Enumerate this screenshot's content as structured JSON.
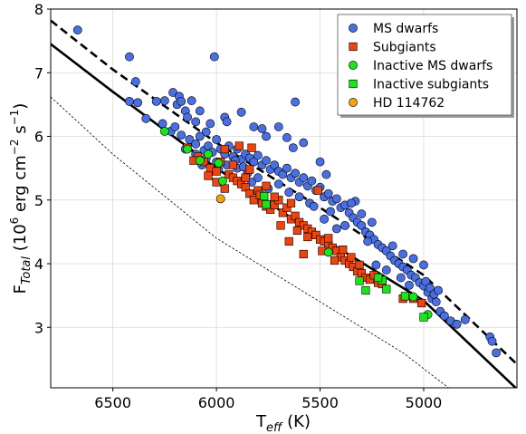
{
  "chart_data": {
    "type": "scatter",
    "xlabel_main": "T",
    "xlabel_sub": "eff",
    "xlabel_unit": " (K)",
    "ylabel_main": "F",
    "ylabel_sub": "Total",
    "ylabel_unit_a": " (10",
    "ylabel_unit_b": " erg cm",
    "ylabel_unit_c": " s",
    "ylabel_unit_d": ")",
    "ylabel_sup_a": "6",
    "ylabel_sup_b": "−2",
    "ylabel_sup_c": "−1",
    "xlim": [
      6800,
      4550
    ],
    "ylim": [
      2.05,
      8.0
    ],
    "x_ticks": [
      6500,
      6000,
      5500,
      5000
    ],
    "y_ticks": [
      3,
      4,
      5,
      6,
      7,
      8
    ],
    "grid": true,
    "legend_position": "top-right",
    "legend": [
      {
        "label": "MS dwarfs",
        "marker": "circle",
        "color": "#4a6fe3"
      },
      {
        "label": "Subgiants",
        "marker": "square",
        "color": "#f0440f"
      },
      {
        "label": "Inactive MS dwarfs",
        "marker": "circle",
        "color": "#19e619"
      },
      {
        "label": "Inactive subgiants",
        "marker": "square",
        "color": "#19e619"
      },
      {
        "label": "HD 114762",
        "marker": "circle",
        "color": "#f5a30a"
      }
    ],
    "reference_curves": [
      {
        "style": "dashed",
        "points": [
          [
            6800,
            7.82
          ],
          [
            6500,
            7.05
          ],
          [
            6000,
            5.9
          ],
          [
            5500,
            4.88
          ],
          [
            5000,
            3.82
          ],
          [
            4550,
            2.42
          ]
        ]
      },
      {
        "style": "solid",
        "points": [
          [
            6800,
            7.45
          ],
          [
            6500,
            6.7
          ],
          [
            6000,
            5.5
          ],
          [
            5500,
            4.42
          ],
          [
            5000,
            3.42
          ],
          [
            4550,
            2.03
          ]
        ]
      },
      {
        "style": "dotted",
        "points": [
          [
            6800,
            6.62
          ],
          [
            6500,
            5.72
          ],
          [
            6000,
            4.4
          ],
          [
            5500,
            3.4
          ],
          [
            5100,
            2.6
          ],
          [
            4880,
            2.05
          ]
        ]
      }
    ],
    "series": [
      {
        "name": "MS dwarfs",
        "marker": "circle",
        "color": "#4a6fe3",
        "points": [
          [
            6670,
            7.67
          ],
          [
            6420,
            7.25
          ],
          [
            6010,
            7.25
          ],
          [
            5620,
            6.54
          ],
          [
            6390,
            6.86
          ],
          [
            6420,
            6.55
          ],
          [
            6380,
            6.53
          ],
          [
            6340,
            6.28
          ],
          [
            6290,
            6.55
          ],
          [
            6250,
            6.56
          ],
          [
            6210,
            6.69
          ],
          [
            6180,
            6.63
          ],
          [
            6190,
            6.5
          ],
          [
            6170,
            6.55
          ],
          [
            6120,
            6.56
          ],
          [
            6150,
            6.4
          ],
          [
            6140,
            6.3
          ],
          [
            6100,
            6.23
          ],
          [
            6080,
            6.4
          ],
          [
            6050,
            6.07
          ],
          [
            6030,
            6.2
          ],
          [
            5960,
            6.3
          ],
          [
            5950,
            6.23
          ],
          [
            5880,
            6.38
          ],
          [
            5820,
            6.15
          ],
          [
            5780,
            6.12
          ],
          [
            5760,
            6.0
          ],
          [
            5700,
            6.15
          ],
          [
            5660,
            5.98
          ],
          [
            5630,
            5.82
          ],
          [
            5580,
            5.9
          ],
          [
            5500,
            5.6
          ],
          [
            5470,
            5.4
          ],
          [
            5330,
            4.98
          ],
          [
            6260,
            6.2
          ],
          [
            6220,
            6.08
          ],
          [
            6200,
            6.15
          ],
          [
            6170,
            6.02
          ],
          [
            6130,
            5.95
          ],
          [
            6100,
            5.88
          ],
          [
            6080,
            6.0
          ],
          [
            6060,
            5.78
          ],
          [
            6040,
            5.85
          ],
          [
            6020,
            5.75
          ],
          [
            6000,
            5.95
          ],
          [
            5980,
            5.8
          ],
          [
            5960,
            5.72
          ],
          [
            5940,
            5.85
          ],
          [
            5920,
            5.68
          ],
          [
            5900,
            5.8
          ],
          [
            5880,
            5.64
          ],
          [
            5860,
            5.72
          ],
          [
            5840,
            5.66
          ],
          [
            5820,
            5.6
          ],
          [
            5800,
            5.7
          ],
          [
            5780,
            5.55
          ],
          [
            5760,
            5.62
          ],
          [
            5740,
            5.48
          ],
          [
            5720,
            5.55
          ],
          [
            5700,
            5.45
          ],
          [
            5680,
            5.4
          ],
          [
            5660,
            5.5
          ],
          [
            5640,
            5.35
          ],
          [
            5620,
            5.42
          ],
          [
            5600,
            5.28
          ],
          [
            5580,
            5.35
          ],
          [
            5560,
            5.22
          ],
          [
            5540,
            5.3
          ],
          [
            5520,
            5.15
          ],
          [
            5500,
            5.2
          ],
          [
            5480,
            5.05
          ],
          [
            5460,
            5.1
          ],
          [
            5440,
            4.98
          ],
          [
            5420,
            5.02
          ],
          [
            5400,
            4.88
          ],
          [
            5380,
            4.92
          ],
          [
            5360,
            4.8
          ],
          [
            5340,
            4.72
          ],
          [
            5320,
            4.65
          ],
          [
            5300,
            4.6
          ],
          [
            5280,
            4.5
          ],
          [
            5260,
            4.45
          ],
          [
            5240,
            4.38
          ],
          [
            5220,
            4.3
          ],
          [
            5200,
            4.25
          ],
          [
            5180,
            4.2
          ],
          [
            5160,
            4.12
          ],
          [
            5140,
            4.05
          ],
          [
            5120,
            4.0
          ],
          [
            5100,
            3.95
          ],
          [
            5080,
            3.9
          ],
          [
            5060,
            3.82
          ],
          [
            5040,
            3.78
          ],
          [
            5020,
            3.7
          ],
          [
            5000,
            3.65
          ],
          [
            4980,
            3.55
          ],
          [
            4960,
            3.45
          ],
          [
            4940,
            3.4
          ],
          [
            4920,
            3.25
          ],
          [
            4900,
            3.18
          ],
          [
            4870,
            3.1
          ],
          [
            4840,
            3.05
          ],
          [
            4800,
            3.12
          ],
          [
            4680,
            2.85
          ],
          [
            4670,
            2.78
          ],
          [
            4650,
            2.6
          ],
          [
            5150,
            4.28
          ],
          [
            5100,
            4.15
          ],
          [
            5050,
            4.08
          ],
          [
            5000,
            3.98
          ],
          [
            4990,
            3.72
          ],
          [
            4970,
            3.62
          ],
          [
            5250,
            4.65
          ],
          [
            5300,
            4.78
          ],
          [
            5350,
            4.95
          ],
          [
            5420,
            4.55
          ],
          [
            5450,
            4.82
          ],
          [
            5480,
            4.7
          ],
          [
            5550,
            4.95
          ],
          [
            5600,
            5.05
          ],
          [
            5650,
            5.12
          ],
          [
            5700,
            5.25
          ],
          [
            5750,
            5.18
          ],
          [
            5800,
            5.35
          ],
          [
            5850,
            5.42
          ],
          [
            5900,
            5.5
          ],
          [
            5950,
            5.55
          ],
          [
            6000,
            5.6
          ],
          [
            6050,
            5.65
          ],
          [
            6100,
            5.72
          ],
          [
            6150,
            5.8
          ],
          [
            5830,
            5.28
          ],
          [
            5870,
            5.52
          ],
          [
            5910,
            5.62
          ],
          [
            5990,
            5.48
          ],
          [
            6070,
            5.55
          ],
          [
            5530,
            4.9
          ],
          [
            5380,
            4.6
          ],
          [
            5270,
            4.35
          ],
          [
            5230,
            3.98
          ],
          [
            5180,
            3.9
          ],
          [
            5110,
            3.78
          ],
          [
            5070,
            3.66
          ],
          [
            4950,
            3.52
          ],
          [
            4930,
            3.58
          ]
        ]
      },
      {
        "name": "Subgiants",
        "marker": "square",
        "color": "#f0440f",
        "points": [
          [
            6140,
            5.82
          ],
          [
            6090,
            5.68
          ],
          [
            6060,
            5.6
          ],
          [
            6030,
            5.5
          ],
          [
            6000,
            5.45
          ],
          [
            5980,
            5.6
          ],
          [
            5960,
            5.8
          ],
          [
            5940,
            5.4
          ],
          [
            5920,
            5.35
          ],
          [
            5900,
            5.3
          ],
          [
            5880,
            5.25
          ],
          [
            5860,
            5.2
          ],
          [
            5840,
            5.1
          ],
          [
            5820,
            5.0
          ],
          [
            5800,
            5.15
          ],
          [
            5780,
            4.95
          ],
          [
            5760,
            4.9
          ],
          [
            5740,
            4.85
          ],
          [
            5720,
            4.92
          ],
          [
            5700,
            5.0
          ],
          [
            5680,
            4.8
          ],
          [
            5660,
            4.88
          ],
          [
            5640,
            4.7
          ],
          [
            5620,
            4.75
          ],
          [
            5600,
            4.65
          ],
          [
            5580,
            4.6
          ],
          [
            5560,
            4.55
          ],
          [
            5540,
            4.5
          ],
          [
            5520,
            4.45
          ],
          [
            5500,
            4.38
          ],
          [
            5480,
            4.35
          ],
          [
            5460,
            4.3
          ],
          [
            5440,
            4.25
          ],
          [
            5420,
            4.2
          ],
          [
            5400,
            4.1
          ],
          [
            5380,
            4.05
          ],
          [
            5360,
            4.0
          ],
          [
            5340,
            3.95
          ],
          [
            5320,
            3.88
          ],
          [
            5300,
            3.85
          ],
          [
            5280,
            3.78
          ],
          [
            5260,
            3.75
          ],
          [
            5240,
            3.82
          ],
          [
            5220,
            3.7
          ],
          [
            5200,
            3.68
          ],
          [
            5100,
            3.45
          ],
          [
            5050,
            3.45
          ],
          [
            5010,
            3.38
          ],
          [
            5890,
            5.85
          ],
          [
            5830,
            5.82
          ],
          [
            5760,
            5.22
          ],
          [
            5510,
            5.15
          ],
          [
            5580,
            4.15
          ],
          [
            5460,
            4.4
          ],
          [
            5720,
            5.05
          ],
          [
            5640,
            4.95
          ],
          [
            5690,
            4.6
          ],
          [
            5610,
            4.52
          ],
          [
            5560,
            4.42
          ],
          [
            5650,
            4.35
          ],
          [
            6000,
            5.28
          ],
          [
            5920,
            5.55
          ],
          [
            5860,
            5.35
          ],
          [
            5790,
            5.08
          ],
          [
            5840,
            5.48
          ],
          [
            6110,
            5.62
          ],
          [
            6040,
            5.38
          ],
          [
            5960,
            5.18
          ],
          [
            5390,
            4.22
          ],
          [
            5350,
            4.1
          ],
          [
            5310,
            3.98
          ],
          [
            5430,
            4.05
          ],
          [
            5490,
            4.2
          ]
        ]
      },
      {
        "name": "Inactive MS dwarfs",
        "marker": "circle",
        "color": "#19e619",
        "points": [
          [
            6250,
            6.08
          ],
          [
            6140,
            5.8
          ],
          [
            6080,
            5.62
          ],
          [
            6040,
            5.72
          ],
          [
            5990,
            5.58
          ],
          [
            5970,
            5.3
          ],
          [
            5460,
            4.18
          ],
          [
            5050,
            3.48
          ],
          [
            4980,
            3.2
          ]
        ]
      },
      {
        "name": "Inactive subgiants",
        "marker": "square",
        "color": "#19e619",
        "points": [
          [
            5770,
            5.06
          ],
          [
            5760,
            4.93
          ],
          [
            5310,
            3.73
          ],
          [
            5280,
            3.58
          ],
          [
            5200,
            3.74
          ],
          [
            5180,
            3.6
          ],
          [
            5090,
            3.49
          ],
          [
            5000,
            3.16
          ],
          [
            5220,
            3.78
          ]
        ]
      },
      {
        "name": "HD 114762",
        "marker": "circle",
        "color": "#f5a30a",
        "points": [
          [
            5980,
            5.02
          ]
        ]
      }
    ]
  }
}
